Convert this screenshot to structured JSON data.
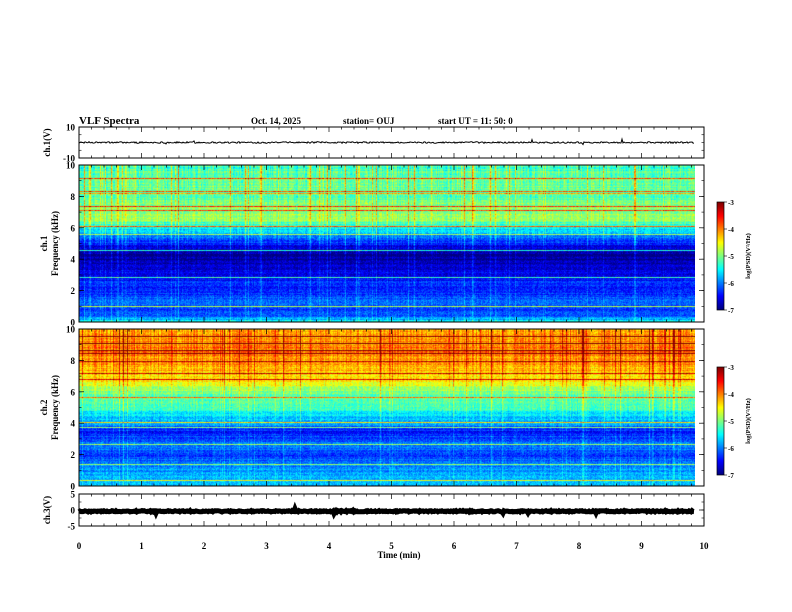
{
  "header": {
    "title": "VLF Spectra",
    "date": "Oct. 14, 2025",
    "station": "station= OUJ",
    "start": "start  UT =   11: 50: 0"
  },
  "chart_data": {
    "type": "heatmap",
    "x_axis": {
      "label": "Time  (min)",
      "range": [
        0,
        10
      ],
      "ticks": [
        "0",
        "1",
        "2",
        "3",
        "4",
        "5",
        "6",
        "7",
        "8",
        "9",
        "10"
      ]
    },
    "panels": [
      {
        "id": "ch1-waveform",
        "type": "line",
        "ylabel": "ch.1(V)",
        "ylim": [
          -10,
          10
        ],
        "yticks": [
          "10",
          "-10"
        ],
        "data_end_min": 9.85,
        "baseline_v": 0.0,
        "noise_v": 0.5
      },
      {
        "id": "ch1-spectrogram",
        "type": "heatmap",
        "ylabel_channel": "ch.1",
        "ylabel": "Frequency  (kHz)",
        "ylim": [
          0,
          10
        ],
        "yticks": [
          "0",
          "2",
          "4",
          "6",
          "8",
          "10"
        ],
        "data_end_min": 9.85,
        "colorbar": {
          "label": "log(PSD)(V²/Hz)",
          "ticks": [
            "-3",
            "-4",
            "-5",
            "-6",
            "-7"
          ],
          "range": [
            -7,
            -3
          ]
        },
        "profile_khz": [
          0,
          0.5,
          1,
          1.5,
          2,
          2.5,
          3,
          3.5,
          4,
          4.5,
          5,
          5.5,
          6,
          6.5,
          7,
          7.5,
          8,
          8.5,
          9,
          9.5,
          10
        ],
        "profile_log_psd": [
          -5.4,
          -6.3,
          -6.2,
          -6.1,
          -6.4,
          -6.3,
          -6.6,
          -6.7,
          -6.9,
          -6.9,
          -6.4,
          -6.0,
          -5.5,
          -5.0,
          -4.9,
          -5.0,
          -5.1,
          -5.1,
          -5.1,
          -5.2,
          -5.3
        ]
      },
      {
        "id": "ch2-spectrogram",
        "type": "heatmap",
        "ylabel_channel": "ch.2",
        "ylabel": "Frequency  (kHz)",
        "ylim": [
          0,
          10
        ],
        "yticks": [
          "0",
          "2",
          "4",
          "6",
          "8",
          "10"
        ],
        "data_end_min": 9.85,
        "colorbar": {
          "label": "log(PSD)(V²/Hz)",
          "ticks": [
            "-3",
            "-4",
            "-5",
            "-6",
            "-7"
          ],
          "range": [
            -7,
            -3
          ]
        },
        "profile_khz": [
          0,
          0.5,
          1,
          1.5,
          2,
          2.5,
          3,
          3.5,
          4,
          4.5,
          5,
          5.5,
          6,
          6.5,
          7,
          7.5,
          8,
          8.5,
          9,
          9.5,
          10
        ],
        "profile_log_psd": [
          -5.6,
          -5.8,
          -5.9,
          -6.1,
          -6.2,
          -6.0,
          -6.2,
          -6.4,
          -5.9,
          -5.6,
          -5.3,
          -5.2,
          -5.0,
          -4.6,
          -4.4,
          -4.2,
          -4.1,
          -4.0,
          -4.0,
          -4.1,
          -4.2
        ]
      },
      {
        "id": "ch3-waveform",
        "type": "line",
        "ylabel": "ch.3(V)",
        "ylim": [
          -5,
          5
        ],
        "yticks": [
          "5",
          "0",
          "-5"
        ],
        "data_end_min": 9.85,
        "baseline_v": -0.4,
        "noise_v": 0.2
      }
    ]
  }
}
